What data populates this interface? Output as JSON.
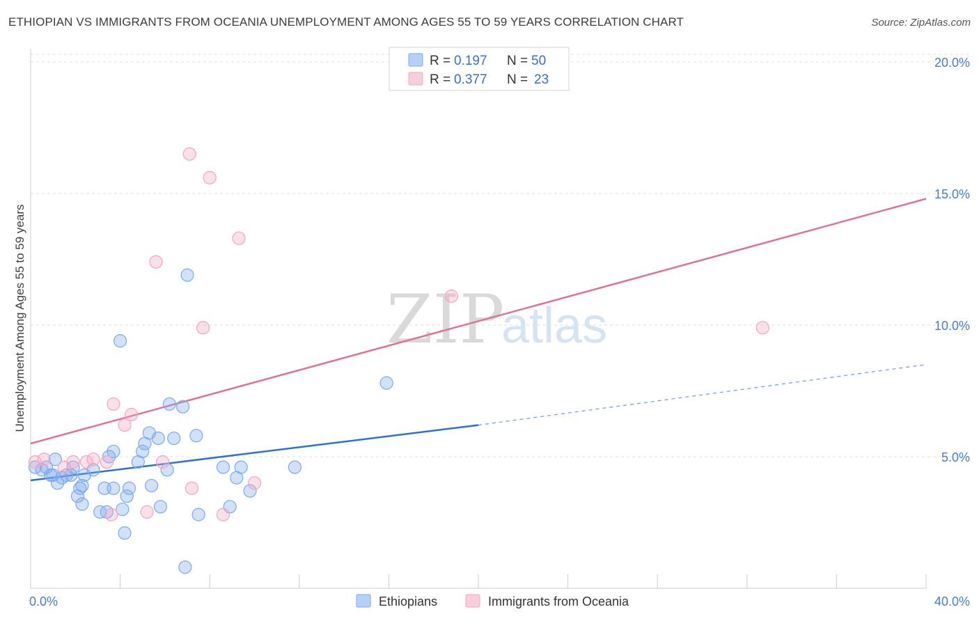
{
  "title": "ETHIOPIAN VS IMMIGRANTS FROM OCEANIA UNEMPLOYMENT AMONG AGES 55 TO 59 YEARS CORRELATION CHART",
  "source": "Source: ZipAtlas.com",
  "watermark": {
    "zip": "ZIP",
    "atlas": "atlas"
  },
  "colors": {
    "blue": "#7aaaf0",
    "blue_line": "#2f6fd0",
    "pink": "#f3a6c0",
    "pink_line": "#e07098"
  },
  "legend": {
    "rows": [
      {
        "r_label": "R =",
        "r_value": "0.197",
        "n_label": "N =",
        "n_value": "50"
      },
      {
        "r_label": "R =",
        "r_value": "0.377",
        "n_label": "N =",
        "n_value": "23"
      }
    ]
  },
  "chart_data": {
    "type": "scatter",
    "title": "ETHIOPIAN VS IMMIGRANTS FROM OCEANIA UNEMPLOYMENT AMONG AGES 55 TO 59 YEARS CORRELATION CHART",
    "xlabel": "",
    "ylabel": "Unemployment Among Ages 55 to 59 years",
    "xlim": [
      0,
      40
    ],
    "ylim": [
      0,
      20.5
    ],
    "x_tick_labels": [
      "0.0%",
      "40.0%"
    ],
    "y_ticks": [
      5,
      10,
      15,
      20
    ],
    "y_tick_labels": [
      "5.0%",
      "10.0%",
      "15.0%",
      "20.0%"
    ],
    "grid": true,
    "legend_position": "top-center",
    "series": [
      {
        "name": "Ethiopians",
        "color": "#7aaaf0",
        "points": [
          [
            0.2,
            4.6
          ],
          [
            0.5,
            4.5
          ],
          [
            0.7,
            4.6
          ],
          [
            0.9,
            4.3
          ],
          [
            1.2,
            4.0
          ],
          [
            1.4,
            4.2
          ],
          [
            1.6,
            4.3
          ],
          [
            1.1,
            4.9
          ],
          [
            1.8,
            4.3
          ],
          [
            1.9,
            4.6
          ],
          [
            2.2,
            3.8
          ],
          [
            2.3,
            3.9
          ],
          [
            2.1,
            3.5
          ],
          [
            2.3,
            3.2
          ],
          [
            2.8,
            4.5
          ],
          [
            3.1,
            2.9
          ],
          [
            3.4,
            2.9
          ],
          [
            3.7,
            5.2
          ],
          [
            3.5,
            5.0
          ],
          [
            3.7,
            3.8
          ],
          [
            4.1,
            3.0
          ],
          [
            4.3,
            3.5
          ],
          [
            4.4,
            3.8
          ],
          [
            4.2,
            2.1
          ],
          [
            4.0,
            9.4
          ],
          [
            4.8,
            4.8
          ],
          [
            5.0,
            5.2
          ],
          [
            5.1,
            5.5
          ],
          [
            5.3,
            5.9
          ],
          [
            5.4,
            3.9
          ],
          [
            5.7,
            5.7
          ],
          [
            5.8,
            3.1
          ],
          [
            6.1,
            4.5
          ],
          [
            6.2,
            7.0
          ],
          [
            6.4,
            5.7
          ],
          [
            6.8,
            6.9
          ],
          [
            7.0,
            11.9
          ],
          [
            7.4,
            5.8
          ],
          [
            7.5,
            2.8
          ],
          [
            6.9,
            0.8
          ],
          [
            8.6,
            4.6
          ],
          [
            8.9,
            3.1
          ],
          [
            9.2,
            4.2
          ],
          [
            9.4,
            4.6
          ],
          [
            9.8,
            3.7
          ],
          [
            11.8,
            4.6
          ],
          [
            15.9,
            7.8
          ],
          [
            2.4,
            4.3
          ],
          [
            1.0,
            4.3
          ],
          [
            3.3,
            3.8
          ]
        ],
        "trend": {
          "x": [
            0,
            20
          ],
          "y": [
            4.1,
            6.2
          ],
          "dashed_extension_x": [
            20,
            40
          ],
          "dashed_extension_y": [
            6.2,
            8.5
          ]
        }
      },
      {
        "name": "Immigrants from Oceania",
        "color": "#f3a6c0",
        "points": [
          [
            0.2,
            4.8
          ],
          [
            0.6,
            4.9
          ],
          [
            1.5,
            4.6
          ],
          [
            1.9,
            4.8
          ],
          [
            2.5,
            4.8
          ],
          [
            2.8,
            4.9
          ],
          [
            3.4,
            4.8
          ],
          [
            3.6,
            2.8
          ],
          [
            3.7,
            7.0
          ],
          [
            4.2,
            6.2
          ],
          [
            4.5,
            6.6
          ],
          [
            5.2,
            2.9
          ],
          [
            5.6,
            12.4
          ],
          [
            5.9,
            4.8
          ],
          [
            7.1,
            16.5
          ],
          [
            7.2,
            3.8
          ],
          [
            7.7,
            9.9
          ],
          [
            8.0,
            15.6
          ],
          [
            8.6,
            2.8
          ],
          [
            9.3,
            13.3
          ],
          [
            10.0,
            4.0
          ],
          [
            18.8,
            11.1
          ],
          [
            32.7,
            9.9
          ]
        ],
        "trend": {
          "x": [
            0,
            40
          ],
          "y": [
            5.5,
            14.8
          ]
        }
      }
    ]
  },
  "bottom_legend": [
    {
      "label": "Ethiopians"
    },
    {
      "label": "Immigrants from Oceania"
    }
  ]
}
